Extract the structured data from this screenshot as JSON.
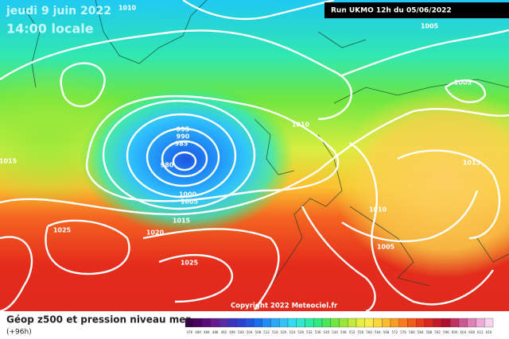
{
  "header": {
    "date": "jeudi 9 juin 2022",
    "time": "14:00 locale",
    "run": "Run UKMO 12h du 05/06/2022"
  },
  "footer": {
    "title": "Géop z500 et pression niveau mer",
    "lead": "(+96h)",
    "copyright": "Copyright 2022 Meteociel.fr"
  },
  "isobar_labels": [
    "1010",
    "1005",
    "1005",
    "1010",
    "1015",
    "995",
    "990",
    "985",
    "980",
    "1000",
    "1005",
    "1015",
    "1025",
    "1020",
    "1025",
    "1015",
    "1010",
    "1005"
  ],
  "colorbar": [
    {
      "label": "476",
      "color": "#3a0046"
    },
    {
      "label": "480",
      "color": "#4b0060"
    },
    {
      "label": "484",
      "color": "#5c0a7a"
    },
    {
      "label": "488",
      "color": "#6a1890"
    },
    {
      "label": "492",
      "color": "#5a2aa8"
    },
    {
      "label": "496",
      "color": "#3b33bd"
    },
    {
      "label": "500",
      "color": "#2a40d0"
    },
    {
      "label": "504",
      "color": "#1f55e0"
    },
    {
      "label": "508",
      "color": "#1a6ef0"
    },
    {
      "label": "512",
      "color": "#1f8cf8"
    },
    {
      "label": "516",
      "color": "#2aa8fc"
    },
    {
      "label": "520",
      "color": "#30c4fc"
    },
    {
      "label": "524",
      "color": "#30dcf0"
    },
    {
      "label": "528",
      "color": "#2ee8d0"
    },
    {
      "label": "532",
      "color": "#2cecaa"
    },
    {
      "label": "536",
      "color": "#30ec80"
    },
    {
      "label": "540",
      "color": "#48e85a"
    },
    {
      "label": "544",
      "color": "#70e640"
    },
    {
      "label": "548",
      "color": "#98e83a"
    },
    {
      "label": "552",
      "color": "#c0ec3a"
    },
    {
      "label": "556",
      "color": "#e4f040"
    },
    {
      "label": "560",
      "color": "#f8ec48"
    },
    {
      "label": "564",
      "color": "#fcd63a"
    },
    {
      "label": "568",
      "color": "#fcbc2c"
    },
    {
      "label": "572",
      "color": "#fc9c22"
    },
    {
      "label": "576",
      "color": "#fa7a1c"
    },
    {
      "label": "580",
      "color": "#f45a1a"
    },
    {
      "label": "584",
      "color": "#ea3c1c"
    },
    {
      "label": "588",
      "color": "#dc2420"
    },
    {
      "label": "592",
      "color": "#c81828"
    },
    {
      "label": "596",
      "color": "#b01030"
    },
    {
      "label": "600",
      "color": "#c03060"
    },
    {
      "label": "604",
      "color": "#d05890"
    },
    {
      "label": "608",
      "color": "#e080b8"
    },
    {
      "label": "612",
      "color": "#eeaad6"
    },
    {
      "label": "616",
      "color": "#f8d4ec"
    }
  ]
}
